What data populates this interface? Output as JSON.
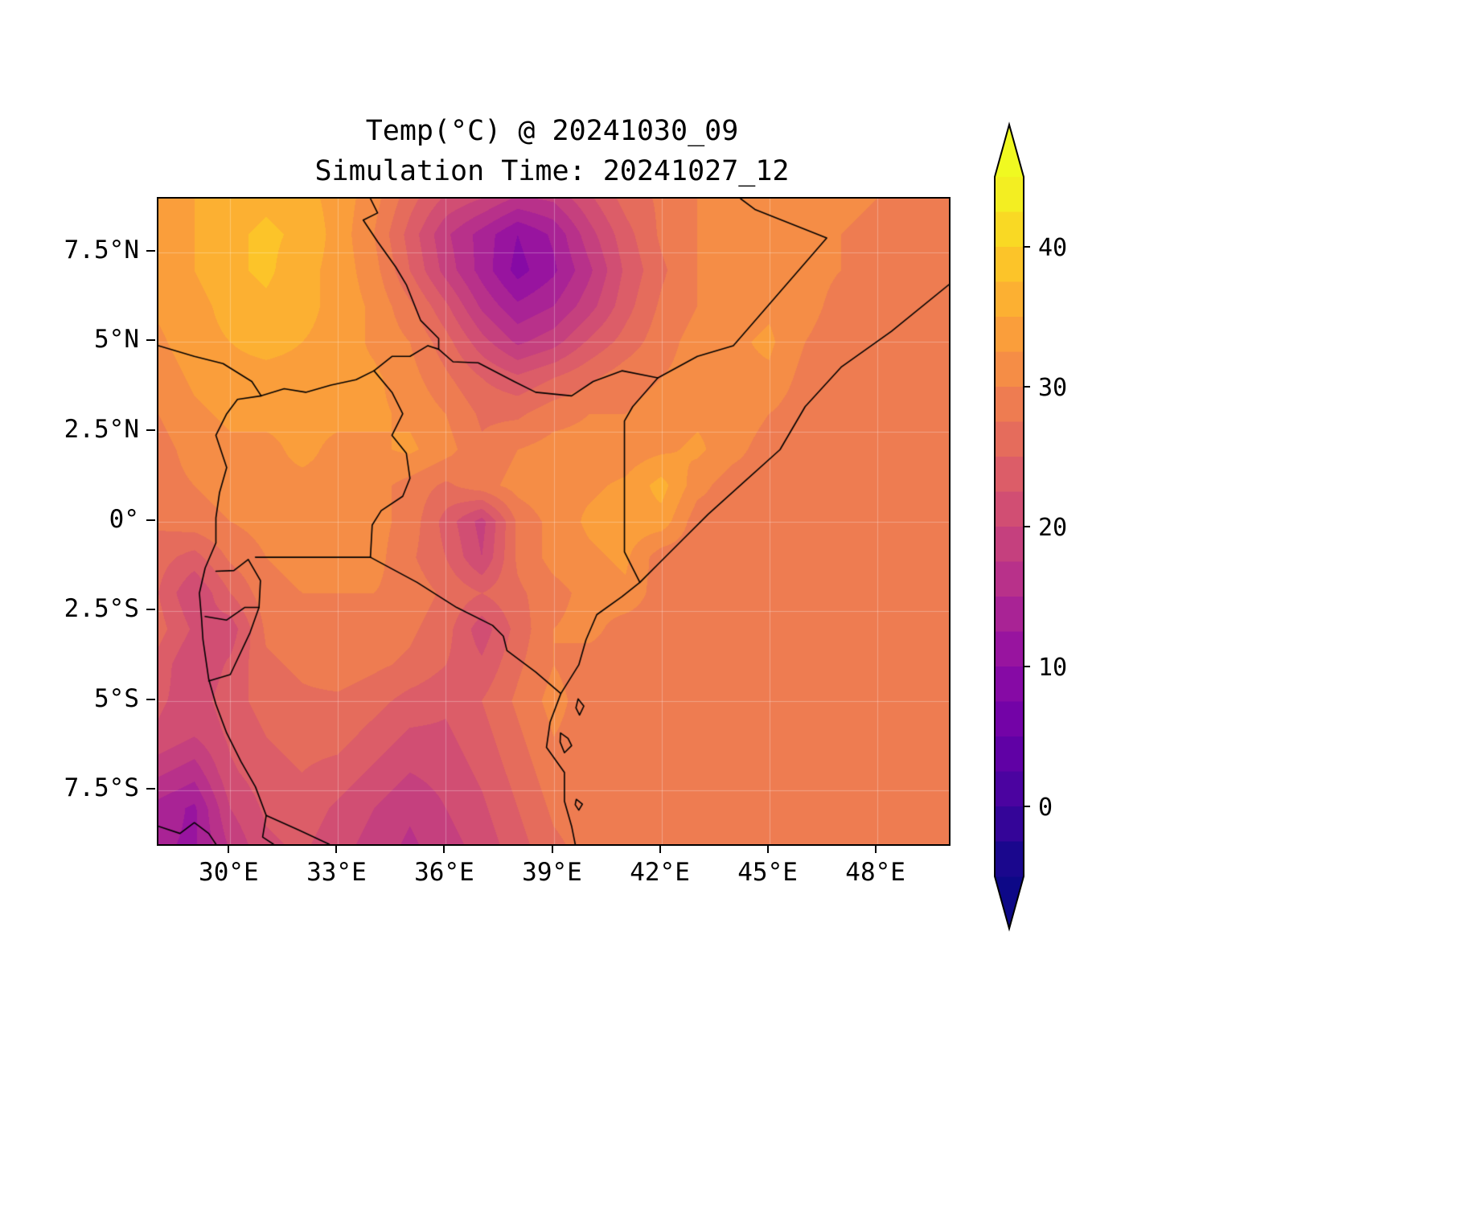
{
  "figure": {
    "title_line1": "Temp(°C) @ 20241030_09",
    "title_line2": "Simulation Time: 20241027_12",
    "background_color": "#ffffff"
  },
  "axes": {
    "lon_min": 28,
    "lon_max": 50,
    "lat_min": -9,
    "lat_max": 9,
    "x_ticks": [
      {
        "label": "30°E",
        "lon": 30
      },
      {
        "label": "33°E",
        "lon": 33
      },
      {
        "label": "36°E",
        "lon": 36
      },
      {
        "label": "39°E",
        "lon": 39
      },
      {
        "label": "42°E",
        "lon": 42
      },
      {
        "label": "45°E",
        "lon": 45
      },
      {
        "label": "48°E",
        "lon": 48
      }
    ],
    "y_ticks": [
      {
        "label": "7.5°N",
        "lat": 7.5
      },
      {
        "label": "5°N",
        "lat": 5
      },
      {
        "label": "2.5°N",
        "lat": 2.5
      },
      {
        "label": "0°",
        "lat": 0
      },
      {
        "label": "2.5°S",
        "lat": -2.5
      },
      {
        "label": "5°S",
        "lat": -5
      },
      {
        "label": "7.5°S",
        "lat": -7.5
      }
    ],
    "grid_color": "rgba(255,255,255,0.3)",
    "frame_color": "#000000",
    "border_line_color": "#000000"
  },
  "colorbar": {
    "orientation": "vertical",
    "vmin": -5,
    "vmax": 45,
    "step": 2.5,
    "extend": "both",
    "tick_labels": [
      "40",
      "30",
      "20",
      "10",
      "0"
    ],
    "tick_values": [
      40,
      30,
      20,
      10,
      0
    ],
    "colormap_name": "plasma",
    "plasma_stops": [
      "#0d0887",
      "#41049d",
      "#6a00a8",
      "#8f0da4",
      "#b12a90",
      "#cc4778",
      "#e16462",
      "#f2844b",
      "#fca636",
      "#fcce25",
      "#f0f921"
    ],
    "over_color": "#f0f921",
    "under_color": "#0d0887",
    "outline_color": "#000000"
  },
  "chart_data": {
    "type": "heatmap",
    "title": "Temp(°C) @ 20241030_09",
    "subtitle": "Simulation Time: 20241027_12",
    "units": "°C",
    "xlabel": "",
    "ylabel": "",
    "x_lons": [
      28,
      29,
      30,
      31,
      32,
      33,
      34,
      35,
      36,
      37,
      38,
      39,
      40,
      41,
      42,
      43,
      44,
      45,
      46,
      47,
      48,
      49,
      50
    ],
    "y_lats": [
      9,
      8,
      7,
      6,
      5,
      4,
      3,
      2,
      1,
      0,
      -1,
      -2,
      -3,
      -4,
      -5,
      -6,
      -7,
      -8,
      -9
    ],
    "ocean_value": 28.5,
    "levels_min": -5,
    "levels_max": 45,
    "levels_step": 2.5,
    "values": [
      [
        33,
        35,
        36,
        37,
        36,
        34,
        31,
        26,
        22,
        20,
        17,
        18,
        22,
        26,
        28,
        30,
        30,
        31,
        31,
        31,
        30,
        28.5,
        28.5
      ],
      [
        33,
        35,
        37,
        38,
        37,
        34,
        30,
        24,
        18,
        14,
        10,
        13,
        19,
        24,
        28,
        30,
        31,
        31,
        31,
        30,
        29,
        28.5,
        28.5
      ],
      [
        33,
        35,
        37,
        38,
        36,
        34,
        31,
        25,
        19,
        14,
        9,
        12,
        17,
        23,
        27,
        30,
        31,
        31,
        31,
        30,
        28.5,
        28.5,
        28.5
      ],
      [
        33,
        34,
        36,
        37,
        36,
        34,
        32,
        28,
        23,
        17,
        13,
        15,
        19,
        24,
        28,
        30,
        31,
        32,
        31,
        29,
        28.5,
        28.5,
        28.5
      ],
      [
        32,
        34,
        35,
        36,
        35,
        34,
        32,
        30,
        26,
        21,
        17,
        19,
        23,
        26,
        29,
        31,
        32,
        33,
        30,
        28.5,
        28.5,
        28.5,
        28.5
      ],
      [
        31,
        33,
        34,
        34,
        34,
        33,
        33,
        31,
        28,
        25,
        23,
        25,
        27,
        29,
        30,
        31,
        32,
        32,
        29,
        28.5,
        28.5,
        28.5,
        28.5
      ],
      [
        30,
        32,
        33,
        33,
        33,
        33,
        33,
        32,
        30,
        27,
        27,
        29,
        30,
        30,
        31,
        32,
        32,
        30,
        28.5,
        28.5,
        28.5,
        28.5,
        28.5
      ],
      [
        29,
        31,
        32,
        32,
        33,
        32,
        32,
        33,
        31,
        28,
        30,
        31,
        31,
        31,
        32,
        33,
        31,
        28.5,
        28.5,
        28.5,
        28.5,
        28.5,
        28.5
      ],
      [
        29,
        30,
        31,
        32,
        32,
        32,
        31,
        29,
        27,
        29,
        31,
        32,
        32,
        33,
        36,
        31,
        28.5,
        28.5,
        28.5,
        28.5,
        28.5,
        28.5,
        28.5
      ],
      [
        28,
        29,
        30,
        31,
        32,
        32,
        31,
        29,
        24,
        19,
        28,
        31,
        33,
        34,
        34,
        28.5,
        28.5,
        28.5,
        28.5,
        28.5,
        28.5,
        28.5,
        28.5
      ],
      [
        26,
        24,
        28,
        30,
        31,
        31,
        31,
        28,
        25,
        20,
        28,
        31,
        32,
        33,
        28.5,
        28.5,
        28.5,
        28.5,
        28.5,
        28.5,
        28.5,
        28.5,
        28.5
      ],
      [
        25,
        20,
        25,
        29,
        30,
        30,
        30,
        29,
        27,
        25,
        27,
        29,
        31,
        32,
        28.5,
        28.5,
        28.5,
        28.5,
        28.5,
        28.5,
        28.5,
        28.5,
        28.5
      ],
      [
        26,
        22,
        21,
        28,
        29,
        29,
        29,
        28,
        26,
        21,
        26,
        30,
        31,
        28.5,
        28.5,
        28.5,
        28.5,
        28.5,
        28.5,
        28.5,
        28.5,
        28.5,
        28.5
      ],
      [
        24,
        20,
        23,
        27,
        28,
        29,
        28,
        27,
        25,
        23,
        27,
        30,
        28.5,
        28.5,
        28.5,
        28.5,
        28.5,
        28.5,
        28.5,
        28.5,
        28.5,
        28.5,
        28.5
      ],
      [
        23,
        21,
        24,
        26,
        27,
        27,
        26,
        24,
        23,
        25,
        28,
        31,
        28.5,
        28.5,
        28.5,
        28.5,
        28.5,
        28.5,
        28.5,
        28.5,
        28.5,
        28.5,
        28.5
      ],
      [
        22,
        20,
        23,
        25,
        26,
        26,
        24,
        22,
        22,
        24,
        27,
        30,
        28.5,
        28.5,
        28.5,
        28.5,
        28.5,
        28.5,
        28.5,
        28.5,
        28.5,
        28.5,
        28.5
      ],
      [
        18,
        16,
        22,
        24,
        25,
        24,
        22,
        20,
        21,
        23,
        26,
        29,
        28.5,
        28.5,
        28.5,
        28.5,
        28.5,
        28.5,
        28.5,
        28.5,
        28.5,
        28.5,
        28.5
      ],
      [
        14,
        12,
        20,
        23,
        24,
        22,
        20,
        18,
        20,
        22,
        25,
        28,
        29,
        28.5,
        28.5,
        28.5,
        28.5,
        28.5,
        28.5,
        28.5,
        28.5,
        28.5,
        28.5
      ],
      [
        13,
        12,
        18,
        22,
        23,
        21,
        19,
        17,
        19,
        21,
        24,
        27,
        28.5,
        28.5,
        28.5,
        28.5,
        28.5,
        28.5,
        28.5,
        28.5,
        28.5,
        28.5,
        28.5
      ]
    ],
    "borders": [
      [
        [
          50,
          6.6
        ],
        [
          48.4,
          5.3
        ],
        [
          47.0,
          4.3
        ],
        [
          46.0,
          3.2
        ],
        [
          45.3,
          2.0
        ],
        [
          44.3,
          1.1
        ],
        [
          43.3,
          0.2
        ],
        [
          42.6,
          -0.5
        ],
        [
          41.9,
          -1.2
        ],
        [
          41.4,
          -1.7
        ],
        [
          40.9,
          -2.1
        ],
        [
          40.2,
          -2.6
        ],
        [
          39.9,
          -3.3
        ],
        [
          39.7,
          -4.0
        ],
        [
          39.2,
          -4.8
        ],
        [
          38.9,
          -5.6
        ],
        [
          38.8,
          -6.3
        ],
        [
          39.3,
          -7.0
        ],
        [
          39.3,
          -7.8
        ],
        [
          39.5,
          -8.5
        ],
        [
          39.6,
          -9.0
        ]
      ],
      [
        [
          33.9,
          9.0
        ],
        [
          34.1,
          8.6
        ],
        [
          33.7,
          8.4
        ],
        [
          34.1,
          7.8
        ],
        [
          34.6,
          7.1
        ],
        [
          34.9,
          6.6
        ],
        [
          35.3,
          5.6
        ],
        [
          35.8,
          5.1
        ],
        [
          35.8,
          4.8
        ],
        [
          36.2,
          4.45
        ],
        [
          36.9,
          4.42
        ],
        [
          37.9,
          3.9
        ],
        [
          38.5,
          3.6
        ],
        [
          39.5,
          3.5
        ],
        [
          40.1,
          3.9
        ],
        [
          40.9,
          4.2
        ],
        [
          41.9,
          4.0
        ]
      ],
      [
        [
          41.9,
          4.0
        ],
        [
          43.0,
          4.6
        ],
        [
          44.0,
          4.9
        ],
        [
          46.6,
          7.9
        ],
        [
          45.6,
          8.3
        ],
        [
          44.6,
          8.7
        ],
        [
          44.2,
          9.0
        ]
      ],
      [
        [
          41.9,
          4.0
        ],
        [
          41.2,
          3.2
        ],
        [
          40.97,
          2.8
        ],
        [
          40.97,
          -0.85
        ],
        [
          41.4,
          -1.7
        ]
      ],
      [
        [
          28.0,
          4.9
        ],
        [
          29.0,
          4.6
        ],
        [
          29.8,
          4.4
        ],
        [
          30.6,
          3.9
        ],
        [
          30.86,
          3.5
        ],
        [
          31.5,
          3.7
        ],
        [
          32.1,
          3.6
        ],
        [
          32.8,
          3.8
        ],
        [
          33.5,
          3.95
        ],
        [
          34.0,
          4.2
        ],
        [
          34.5,
          4.6
        ],
        [
          35.0,
          4.6
        ],
        [
          35.5,
          4.9
        ],
        [
          35.8,
          4.8
        ]
      ],
      [
        [
          34.0,
          4.2
        ],
        [
          34.5,
          3.6
        ],
        [
          34.8,
          3.0
        ],
        [
          34.5,
          2.4
        ],
        [
          34.9,
          1.9
        ],
        [
          35.0,
          1.2
        ],
        [
          34.8,
          0.7
        ],
        [
          34.2,
          0.3
        ],
        [
          33.95,
          -0.1
        ],
        [
          33.9,
          -1.0
        ]
      ],
      [
        [
          30.7,
          -1.0
        ],
        [
          31.8,
          -1.0
        ],
        [
          32.9,
          -1.0
        ],
        [
          33.9,
          -1.0
        ]
      ],
      [
        [
          33.9,
          -1.0
        ],
        [
          35.2,
          -1.7
        ],
        [
          36.3,
          -2.4
        ],
        [
          37.3,
          -2.9
        ],
        [
          37.6,
          -3.2
        ],
        [
          37.7,
          -3.6
        ],
        [
          38.5,
          -4.2
        ],
        [
          39.2,
          -4.8
        ]
      ],
      [
        [
          30.86,
          3.5
        ],
        [
          30.2,
          3.4
        ],
        [
          29.9,
          3.0
        ],
        [
          29.6,
          2.4
        ],
        [
          29.9,
          1.5
        ],
        [
          29.7,
          0.8
        ],
        [
          29.6,
          0.1
        ],
        [
          29.6,
          -0.6
        ],
        [
          29.3,
          -1.3
        ],
        [
          29.14,
          -2.0
        ],
        [
          29.2,
          -2.7
        ],
        [
          29.24,
          -3.3
        ],
        [
          29.4,
          -4.4
        ],
        [
          29.6,
          -5.1
        ],
        [
          29.9,
          -5.9
        ],
        [
          30.3,
          -6.7
        ],
        [
          30.7,
          -7.4
        ],
        [
          31.0,
          -8.2
        ],
        [
          30.9,
          -8.8
        ],
        [
          31.2,
          -9.0
        ]
      ],
      [
        [
          29.6,
          -1.39
        ],
        [
          30.1,
          -1.37
        ],
        [
          30.5,
          -1.06
        ],
        [
          30.84,
          -1.65
        ],
        [
          30.8,
          -2.4
        ]
      ],
      [
        [
          29.3,
          -2.65
        ],
        [
          29.9,
          -2.75
        ],
        [
          30.4,
          -2.4
        ],
        [
          30.8,
          -2.4
        ]
      ],
      [
        [
          30.8,
          -2.4
        ],
        [
          30.55,
          -3.1
        ],
        [
          30.0,
          -4.27
        ],
        [
          29.4,
          -4.45
        ]
      ],
      [
        [
          31.0,
          -8.2
        ],
        [
          31.9,
          -8.6
        ],
        [
          32.75,
          -9.0
        ],
        [
          33.1,
          -9.3
        ]
      ],
      [
        [
          28.0,
          -8.5
        ],
        [
          28.6,
          -8.7
        ],
        [
          29.0,
          -8.4
        ],
        [
          29.4,
          -8.7
        ],
        [
          29.6,
          -9.0
        ]
      ],
      [
        [
          39.68,
          -4.95
        ],
        [
          39.84,
          -5.15
        ],
        [
          39.72,
          -5.4
        ],
        [
          39.62,
          -5.2
        ],
        [
          39.68,
          -4.95
        ]
      ],
      [
        [
          39.19,
          -5.9
        ],
        [
          39.4,
          -6.05
        ],
        [
          39.5,
          -6.25
        ],
        [
          39.3,
          -6.45
        ],
        [
          39.18,
          -6.15
        ],
        [
          39.19,
          -5.9
        ]
      ],
      [
        [
          39.63,
          -7.75
        ],
        [
          39.8,
          -7.88
        ],
        [
          39.7,
          -8.05
        ],
        [
          39.6,
          -7.9
        ],
        [
          39.63,
          -7.75
        ]
      ]
    ]
  }
}
